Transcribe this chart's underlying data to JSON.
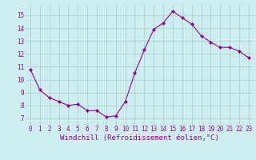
{
  "x": [
    0,
    1,
    2,
    3,
    4,
    5,
    6,
    7,
    8,
    9,
    10,
    11,
    12,
    13,
    14,
    15,
    16,
    17,
    18,
    19,
    20,
    21,
    22,
    23
  ],
  "y": [
    10.8,
    9.2,
    8.6,
    8.3,
    8.0,
    8.1,
    7.6,
    7.6,
    7.1,
    7.2,
    8.3,
    10.5,
    12.3,
    13.9,
    14.4,
    15.3,
    14.8,
    14.3,
    13.4,
    12.9,
    12.5,
    12.5,
    12.2,
    11.7
  ],
  "line_color": "#990099",
  "marker": "D",
  "marker_size": 2,
  "bg_color": "#cceeee",
  "grid_color": "#aacccc",
  "xlabel": "Windchill (Refroidissement éolien,°C)",
  "xlabel_color": "#990099",
  "tick_color": "#990099",
  "ylim": [
    6.5,
    15.8
  ],
  "xlim": [
    -0.5,
    23.5
  ],
  "yticks": [
    7,
    8,
    9,
    10,
    11,
    12,
    13,
    14,
    15
  ],
  "xticks": [
    0,
    1,
    2,
    3,
    4,
    5,
    6,
    7,
    8,
    9,
    10,
    11,
    12,
    13,
    14,
    15,
    16,
    17,
    18,
    19,
    20,
    21,
    22,
    23
  ],
  "tick_fontsize": 5.5,
  "xlabel_fontsize": 6.5
}
